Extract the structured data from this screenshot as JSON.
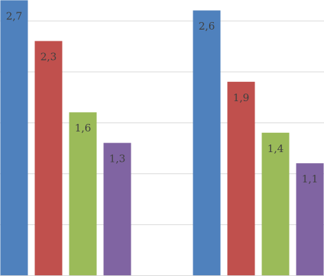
{
  "chart_data": {
    "type": "bar",
    "categories": [
      null,
      null
    ],
    "series": [
      {
        "color": "#4f81bd",
        "values": [
          2.7,
          2.6
        ],
        "value_labels": [
          "2,7",
          "2,6"
        ]
      },
      {
        "color": "#c0504d",
        "values": [
          2.3,
          1.9
        ],
        "value_labels": [
          "2,3",
          "1,9"
        ]
      },
      {
        "color": "#9bbb59",
        "values": [
          1.6,
          1.4
        ],
        "value_labels": [
          "1,6",
          "1,4"
        ]
      },
      {
        "color": "#8064a2",
        "values": [
          1.3,
          1.1
        ],
        "value_labels": [
          "1,3",
          "1,1"
        ]
      }
    ],
    "ylim": [
      0,
      2.7
    ],
    "yticks": [
      0,
      0.5,
      1,
      1.5,
      2,
      2.5
    ],
    "grid": true
  }
}
